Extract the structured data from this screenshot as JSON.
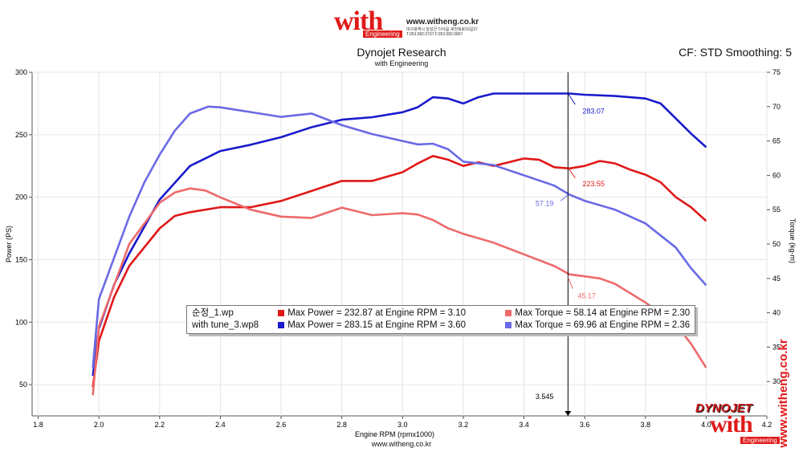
{
  "header": {
    "logo_text": "with",
    "logo_sub": "Engineering",
    "website": "www.witheng.co.kr",
    "address_line": "대구광역시 달성군 다사읍 세천북로16길37",
    "phone_line": "T.053.582.0707 F.053.582.0807"
  },
  "chart_data": {
    "type": "line",
    "title": "Dynojet Research",
    "subtitle": "with Engineering",
    "annotation_right": "CF: STD Smoothing: 5",
    "xlabel": "Engine RPM (rpmx1000)",
    "ylabel": "Power (PS)",
    "y2label": "Torque (kg-m)",
    "xlim": [
      1.78,
      4.2
    ],
    "ylim": [
      25,
      300
    ],
    "y2lim": [
      25,
      75
    ],
    "x_ticks": [
      "1.8",
      "2.0",
      "2.2",
      "2.4",
      "2.6",
      "2.8",
      "3.0",
      "3.2",
      "3.4",
      "3.6",
      "3.8",
      "4.0",
      "4.2"
    ],
    "y_ticks": [
      "50",
      "100",
      "150",
      "200",
      "250",
      "300"
    ],
    "y2_ticks": [
      "30",
      "35",
      "40",
      "45",
      "50",
      "55",
      "60",
      "65",
      "70",
      "75"
    ],
    "grid": true,
    "cursor": {
      "x": 3.545,
      "label": "3.545",
      "readouts": [
        {
          "text": "283.07",
          "color": "#1a1acc",
          "x": 3.545,
          "y": 283.07,
          "axis": "left"
        },
        {
          "text": "57.19",
          "color": "#6a6ae6",
          "x": 3.545,
          "y": 57.19,
          "axis": "right"
        },
        {
          "text": "223.55",
          "color": "#e01818",
          "x": 3.545,
          "y": 223.55,
          "axis": "left"
        },
        {
          "text": "45.17",
          "color": "#ee6a6a",
          "x": 3.545,
          "y": 45.17,
          "axis": "right"
        }
      ]
    },
    "series": [
      {
        "name": "순정_1.wp",
        "kind": "power",
        "axis": "left",
        "color": "#e01818",
        "x": [
          1.98,
          2.0,
          2.05,
          2.1,
          2.2,
          2.25,
          2.3,
          2.4,
          2.5,
          2.6,
          2.7,
          2.8,
          2.9,
          3.0,
          3.05,
          3.1,
          3.15,
          3.2,
          3.25,
          3.3,
          3.35,
          3.4,
          3.45,
          3.5,
          3.55,
          3.6,
          3.65,
          3.7,
          3.75,
          3.8,
          3.85,
          3.9,
          3.95,
          4.0
        ],
        "values": [
          48,
          85,
          120,
          145,
          175,
          185,
          188,
          192,
          192,
          197,
          205,
          213,
          213,
          220,
          227,
          233,
          230,
          225,
          228,
          225,
          228,
          231,
          230,
          224,
          223,
          225,
          229,
          227,
          222,
          218,
          212,
          200,
          192,
          181
        ]
      },
      {
        "name": "with tune_3.wp8",
        "kind": "power",
        "axis": "left",
        "color": "#1a1acc",
        "x": [
          1.98,
          2.0,
          2.05,
          2.1,
          2.2,
          2.3,
          2.4,
          2.5,
          2.6,
          2.7,
          2.8,
          2.9,
          3.0,
          3.05,
          3.1,
          3.15,
          3.2,
          3.25,
          3.3,
          3.4,
          3.5,
          3.55,
          3.6,
          3.7,
          3.8,
          3.85,
          3.9,
          3.95,
          4.0
        ],
        "values": [
          57,
          95,
          130,
          155,
          198,
          225,
          237,
          242,
          248,
          256,
          262,
          264,
          268,
          272,
          280,
          279,
          275,
          280,
          283,
          283,
          283,
          283,
          282,
          281,
          279,
          275,
          263,
          251,
          240
        ]
      },
      {
        "name": "순정_1.wp",
        "kind": "torque",
        "axis": "right",
        "color": "#ee6a6a",
        "x": [
          1.98,
          2.0,
          2.05,
          2.1,
          2.15,
          2.2,
          2.25,
          2.3,
          2.35,
          2.4,
          2.5,
          2.6,
          2.7,
          2.8,
          2.9,
          3.0,
          3.05,
          3.1,
          3.15,
          3.2,
          3.3,
          3.4,
          3.5,
          3.55,
          3.6,
          3.65,
          3.7,
          3.8,
          3.9,
          3.95,
          4.0
        ],
        "values": [
          28,
          38,
          44,
          50,
          53,
          56,
          57.5,
          58.1,
          57.8,
          56.8,
          55,
          54,
          53.8,
          55.3,
          54.2,
          54.5,
          54.3,
          53.5,
          52.3,
          51.5,
          50.2,
          48.5,
          46.8,
          45.6,
          45.3,
          45.0,
          44.2,
          41.5,
          38.3,
          35.5,
          32
        ]
      },
      {
        "name": "with tune_3.wp8",
        "kind": "torque",
        "axis": "right",
        "color": "#6a6ae6",
        "x": [
          1.98,
          2.0,
          2.05,
          2.1,
          2.15,
          2.2,
          2.25,
          2.3,
          2.36,
          2.4,
          2.5,
          2.6,
          2.7,
          2.8,
          2.9,
          3.0,
          3.05,
          3.1,
          3.15,
          3.2,
          3.3,
          3.4,
          3.5,
          3.55,
          3.6,
          3.7,
          3.8,
          3.9,
          3.95,
          4.0
        ],
        "values": [
          32,
          42,
          48,
          54,
          59,
          63,
          66.5,
          69,
          70,
          69.9,
          69.2,
          68.5,
          69.0,
          67.3,
          66.0,
          65.0,
          64.5,
          64.6,
          63.8,
          62.0,
          61.5,
          60.0,
          58.5,
          57.2,
          56.3,
          55.0,
          53.0,
          49.5,
          46.5,
          44
        ]
      }
    ]
  },
  "legend": {
    "rows": [
      {
        "file": "순정_1.wp",
        "power_color": "#e01818",
        "power_text": "Max Power = 232.87 at Engine RPM = 3.10",
        "torque_color": "#ee6a6a",
        "torque_text": "Max Torque = 58.14 at Engine RPM = 2.30"
      },
      {
        "file": "with tune_3.wp8",
        "power_color": "#1a1acc",
        "power_text": "Max Power = 283.15 at Engine RPM = 3.60",
        "torque_color": "#6a6ae6",
        "torque_text": "Max Torque = 69.96 at Engine RPM = 2.36"
      }
    ]
  },
  "branding": {
    "dynojet": "DYNOJET",
    "vertical_site": "www.witheng.co.kr",
    "logo_text": "with",
    "logo_sub": "Engineering"
  },
  "footer": {
    "website": "www.witheng.co.kr"
  }
}
